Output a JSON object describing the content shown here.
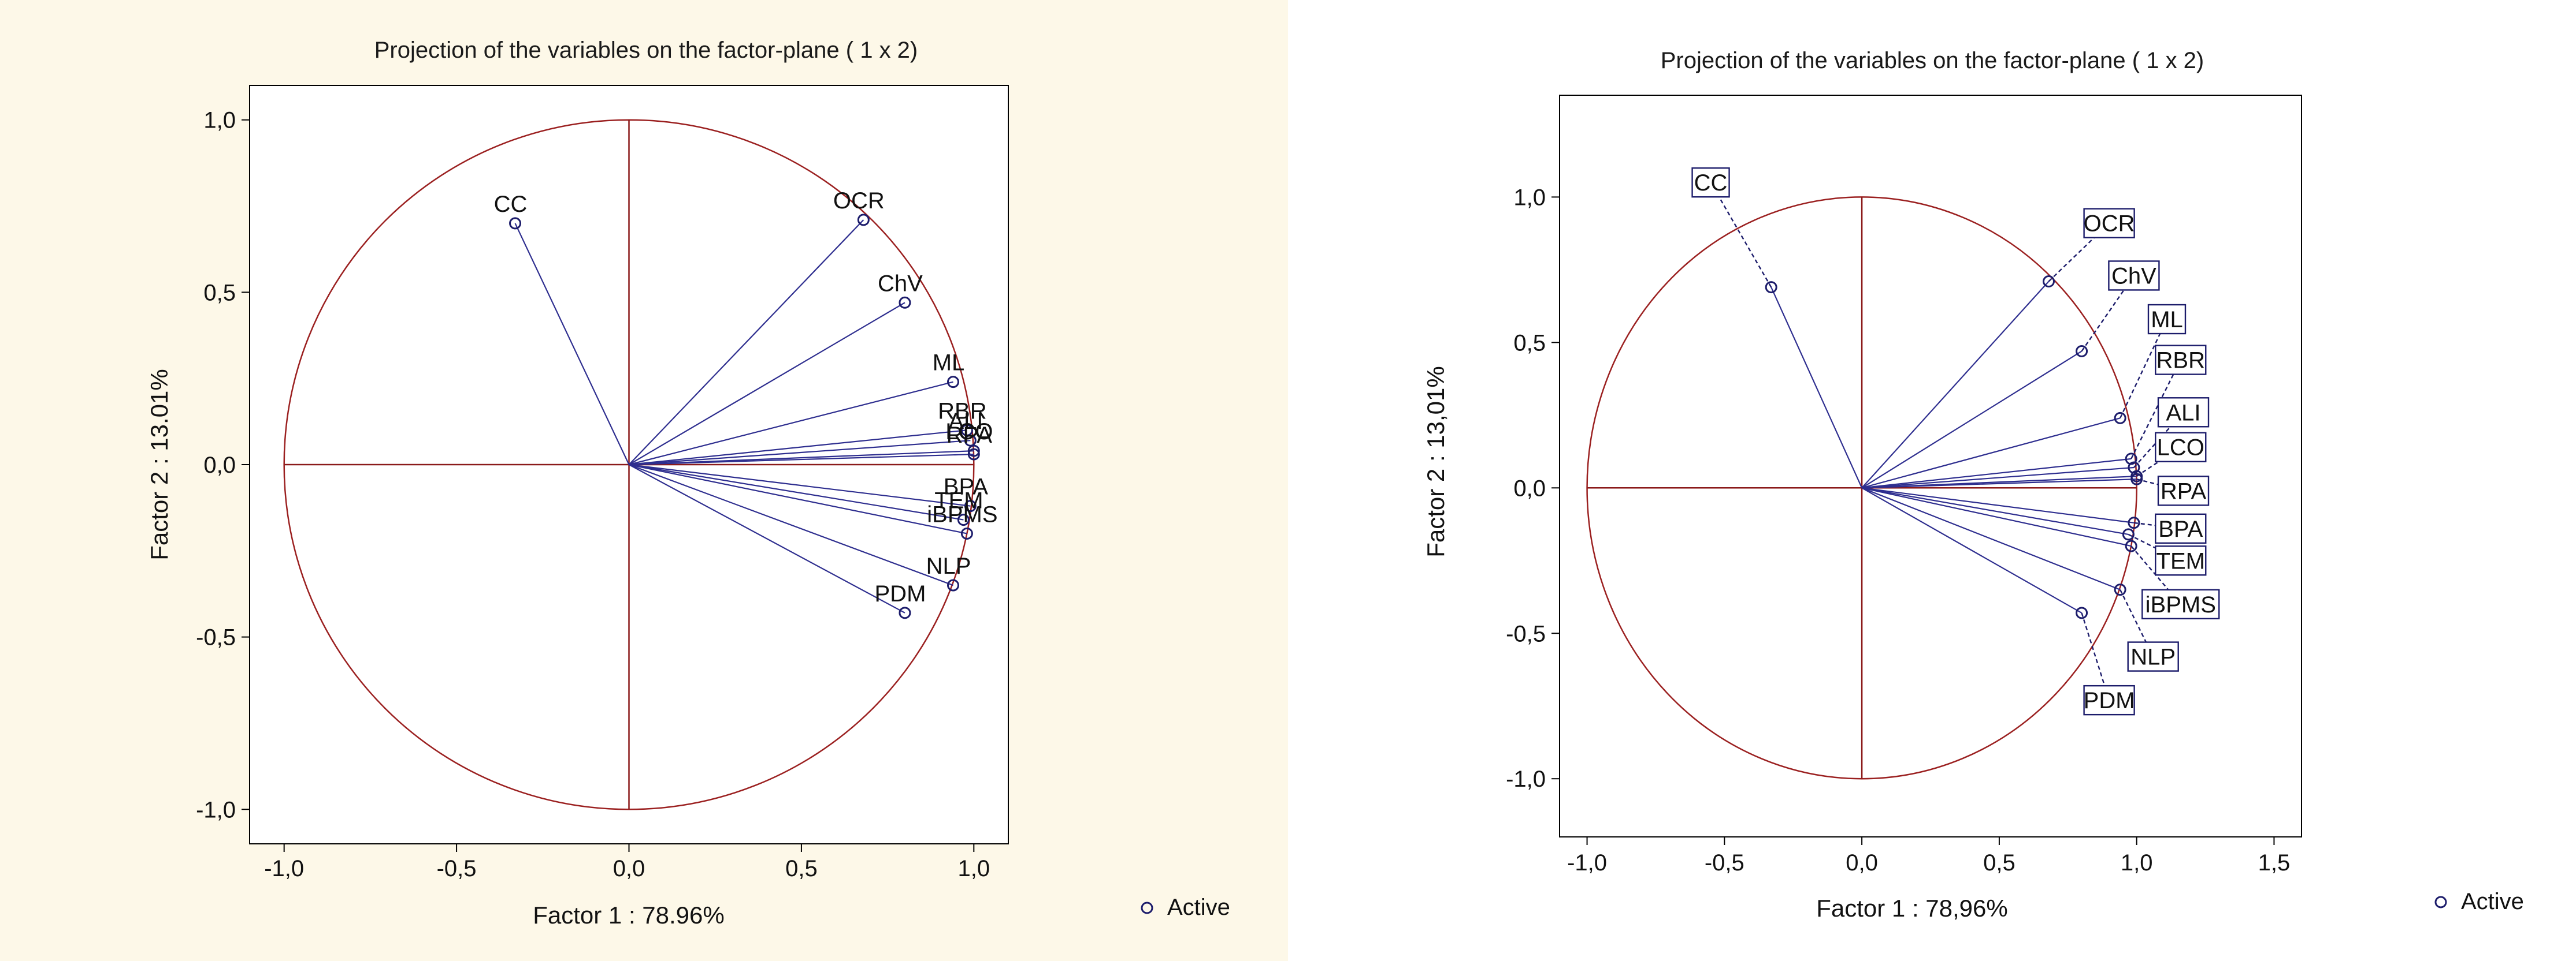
{
  "chart_data": [
    {
      "type": "scatter",
      "variant": "variable-projection-circle",
      "title": "Projection of the variables on the factor-plane (  1 x   2)",
      "xlabel": "Factor 1 : 78.96%",
      "ylabel": "Factor 2 : 13.01%",
      "xlim": [
        -1.1,
        1.1
      ],
      "ylim": [
        -1.1,
        1.1
      ],
      "xticks": [
        "-1,0",
        "-0,5",
        "0,0",
        "0,5",
        "1,0"
      ],
      "yticks": [
        "-1,0",
        "-0,5",
        "0,0",
        "0,5",
        "1,0"
      ],
      "label_mode": "inline",
      "legend": "Active",
      "points": [
        {
          "name": "CC",
          "x": -0.33,
          "y": 0.7
        },
        {
          "name": "OCR",
          "x": 0.68,
          "y": 0.71
        },
        {
          "name": "ChV",
          "x": 0.8,
          "y": 0.47
        },
        {
          "name": "ML",
          "x": 0.94,
          "y": 0.24
        },
        {
          "name": "RBR",
          "x": 0.98,
          "y": 0.1
        },
        {
          "name": "ALI",
          "x": 0.99,
          "y": 0.07
        },
        {
          "name": "LCO",
          "x": 1.0,
          "y": 0.04
        },
        {
          "name": "RPA",
          "x": 1.0,
          "y": 0.03
        },
        {
          "name": "BPA",
          "x": 0.99,
          "y": -0.12
        },
        {
          "name": "TEM",
          "x": 0.97,
          "y": -0.16
        },
        {
          "name": "iBPMS",
          "x": 0.98,
          "y": -0.2
        },
        {
          "name": "NLP",
          "x": 0.94,
          "y": -0.35
        },
        {
          "name": "PDM",
          "x": 0.8,
          "y": -0.43
        }
      ]
    },
    {
      "type": "scatter",
      "variant": "variable-projection-circle",
      "title": "Projection of the variables on the factor-plane (  1 x   2)",
      "xlabel": "Factor 1 : 78,96%",
      "ylabel": "Factor 2 : 13,01%",
      "xlim": [
        -1.1,
        1.6
      ],
      "ylim": [
        -1.2,
        1.35
      ],
      "xticks": [
        "-1,0",
        "-0,5",
        "0,0",
        "0,5",
        "1,0",
        "1,5"
      ],
      "yticks": [
        "-1,0",
        "-0,5",
        "0,0",
        "0,5",
        "1,0"
      ],
      "label_mode": "boxed-callouts",
      "legend": "Active",
      "points": [
        {
          "name": "CC",
          "x": -0.33,
          "y": 0.69,
          "label_x": -0.55,
          "label_y": 1.05
        },
        {
          "name": "OCR",
          "x": 0.68,
          "y": 0.71,
          "label_x": 0.9,
          "label_y": 0.91
        },
        {
          "name": "ChV",
          "x": 0.8,
          "y": 0.47,
          "label_x": 0.99,
          "label_y": 0.73
        },
        {
          "name": "ML",
          "x": 0.94,
          "y": 0.24,
          "label_x": 1.11,
          "label_y": 0.58
        },
        {
          "name": "RBR",
          "x": 0.98,
          "y": 0.1,
          "label_x": 1.16,
          "label_y": 0.44
        },
        {
          "name": "ALI",
          "x": 0.99,
          "y": 0.07,
          "label_x": 1.17,
          "label_y": 0.26
        },
        {
          "name": "LCO",
          "x": 1.0,
          "y": 0.04,
          "label_x": 1.16,
          "label_y": 0.14
        },
        {
          "name": "RPA",
          "x": 1.0,
          "y": 0.03,
          "label_x": 1.17,
          "label_y": -0.01
        },
        {
          "name": "BPA",
          "x": 0.99,
          "y": -0.12,
          "label_x": 1.16,
          "label_y": -0.14
        },
        {
          "name": "TEM",
          "x": 0.97,
          "y": -0.16,
          "label_x": 1.16,
          "label_y": -0.25
        },
        {
          "name": "iBPMS",
          "x": 0.98,
          "y": -0.2,
          "label_x": 1.16,
          "label_y": -0.4
        },
        {
          "name": "NLP",
          "x": 0.94,
          "y": -0.35,
          "label_x": 1.06,
          "label_y": -0.58
        },
        {
          "name": "PDM",
          "x": 0.8,
          "y": -0.43,
          "label_x": 0.9,
          "label_y": -0.73
        }
      ]
    }
  ],
  "colors": {
    "circle": "#9b2020",
    "axes_lines": "#8b1a1a",
    "vectors": "#2e2e8f",
    "markers": "#1c1c6b",
    "leader_lines": "#1c1c6b",
    "left_background": "#fdf8e8",
    "plot_background": "#ffffff"
  }
}
